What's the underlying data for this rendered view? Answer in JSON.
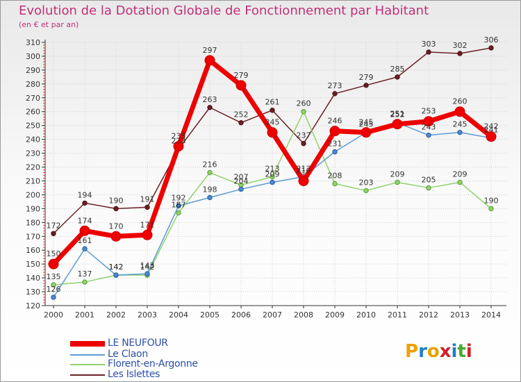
{
  "colors": {
    "title": "#c0307a",
    "grid": "#d0d0d0",
    "axis": "#333333",
    "label": "#333333"
  },
  "legend": [
    {
      "label": "LE NEUFOUR",
      "color": "#ee0000"
    },
    {
      "label": "Le Claon",
      "color": "#5b9bd5"
    },
    {
      "label": "Florent-en-Argonne",
      "color": "#8fd36a"
    },
    {
      "label": "Les Islettes",
      "color": "#6b1f24"
    }
  ],
  "logo": {
    "letters": [
      "P",
      "r",
      "o",
      "x",
      "i",
      "t",
      "i"
    ],
    "colors": [
      "#f0a000",
      "#1e7fc8",
      "#e8a000",
      "#d0202a",
      "#1e7fc8",
      "#48a830",
      "#d0202a"
    ]
  },
  "chart_data": {
    "type": "line",
    "title": "Evolution de la Dotation Globale de Fonctionnement par Habitant",
    "subtitle": "(en € et par an)",
    "xlabel": "",
    "ylabel": "",
    "categories": [
      "2000",
      "2001",
      "2002",
      "2003",
      "2004",
      "2005",
      "2006",
      "2007",
      "2008",
      "2009",
      "2010",
      "2011",
      "2012",
      "2013",
      "2014"
    ],
    "ylim": [
      120,
      310
    ],
    "yticks": [
      120,
      130,
      140,
      150,
      160,
      170,
      180,
      190,
      200,
      210,
      220,
      230,
      240,
      250,
      260,
      270,
      280,
      290,
      300,
      310
    ],
    "grid": true,
    "series": [
      {
        "name": "LE NEUFOUR",
        "values": [
          150,
          174,
          170,
          171,
          235,
          297,
          279,
          245,
          210,
          246,
          245,
          251,
          253,
          260,
          242
        ]
      },
      {
        "name": "Le Claon",
        "values": [
          126,
          161,
          142,
          143,
          192,
          198,
          204,
          209,
          213,
          231,
          245,
          252,
          243,
          245,
          241
        ]
      },
      {
        "name": "Florent-en-Argonne",
        "values": [
          135,
          137,
          142,
          142,
          187,
          216,
          207,
          213,
          260,
          208,
          203,
          209,
          205,
          209,
          190
        ]
      },
      {
        "name": "Les Islettes",
        "values": [
          172,
          194,
          190,
          191,
          233,
          263,
          252,
          261,
          237,
          273,
          279,
          285,
          303,
          302,
          306
        ]
      }
    ]
  }
}
